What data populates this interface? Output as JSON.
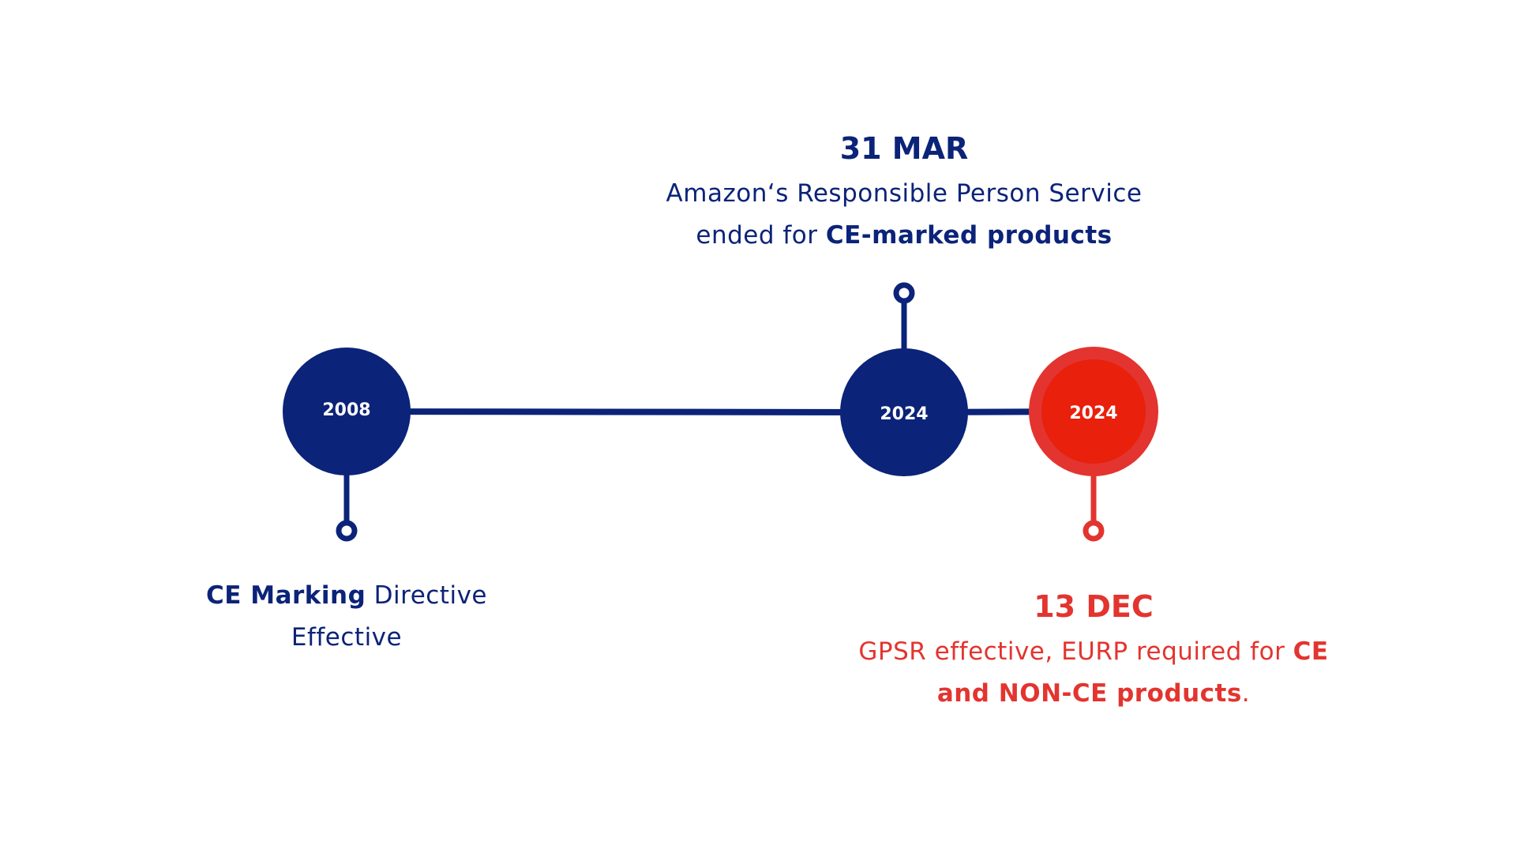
{
  "events": [
    {
      "year": "2008",
      "color": "#0b2378",
      "lines": [
        [
          {
            "text": "CE Marking",
            "bold": true
          },
          {
            "text": " Directive"
          }
        ],
        [
          {
            "text": "Effective"
          }
        ]
      ]
    },
    {
      "year": "2024",
      "date": "31 MAR",
      "color": "#0b2378",
      "lines": [
        [
          {
            "text": "Amazon‘s Responsible Person Service"
          }
        ],
        [
          {
            "text": "ended for "
          },
          {
            "text": "CE-marked products",
            "bold": true
          }
        ]
      ]
    },
    {
      "year": "2024",
      "date": "13 DEC",
      "color": "#e3342f",
      "lines": [
        [
          {
            "text": "GPSR effective, EURP required for "
          },
          {
            "text": "CE",
            "bold": true
          }
        ],
        [
          {
            "text": "and NON-CE products",
            "bold": true
          },
          {
            "text": "."
          }
        ]
      ]
    }
  ]
}
